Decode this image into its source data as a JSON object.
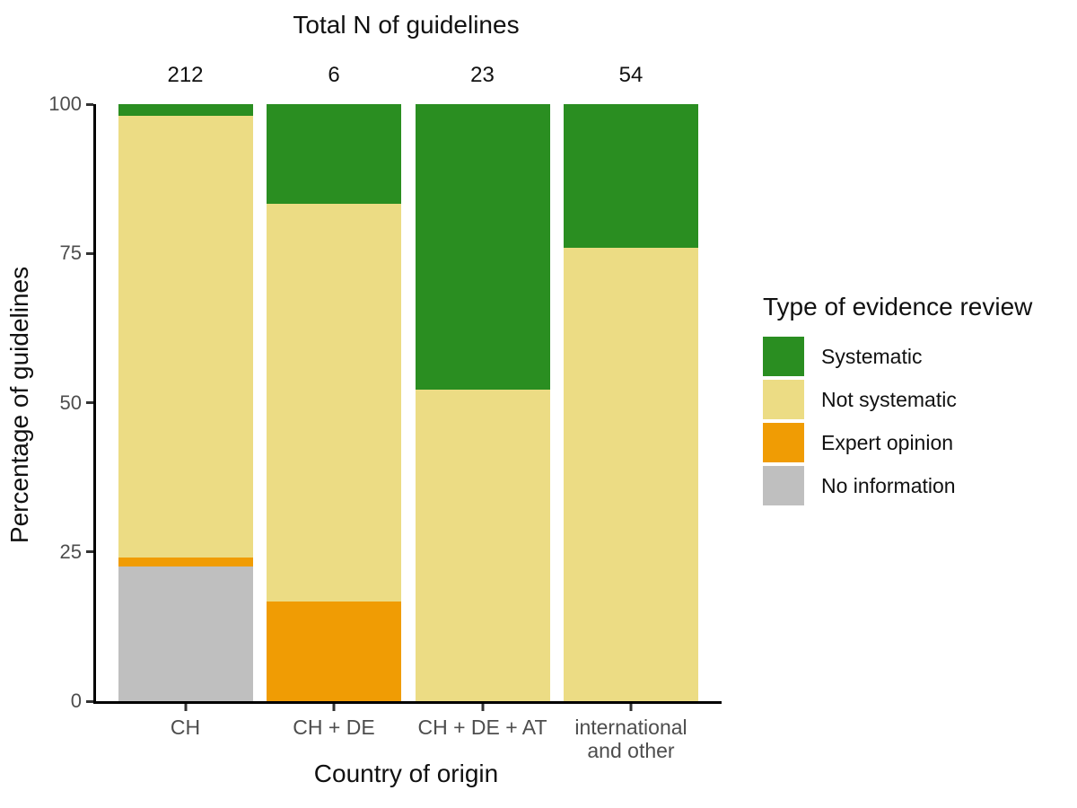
{
  "figure": {
    "top_title": "Total N of guidelines",
    "x_axis_title": "Country of origin",
    "y_axis_title": "Percentage of guidelines",
    "legend_title": "Type of evidence review"
  },
  "colors": {
    "systematic": "#2a8e21",
    "not_systematic": "#ecdc84",
    "expert_opinion": "#f09c04",
    "no_information": "#bfbfbf",
    "axis_line": "#000000",
    "tick_mark": "#333333",
    "tick_label": "#4d4d4d"
  },
  "chart_data": {
    "type": "bar",
    "stacked": true,
    "percent": true,
    "title": "Total N of guidelines",
    "xlabel": "Country of origin",
    "ylabel": "Percentage of guidelines",
    "ylim": [
      0,
      100
    ],
    "y_ticks": [
      0,
      25,
      50,
      75,
      100
    ],
    "grid": false,
    "legend_position": "right",
    "legend_title": "Type of evidence review",
    "categories": [
      "CH",
      "CH + DE",
      "CH + DE + AT",
      "international\nand other"
    ],
    "totals": [
      "212",
      "6",
      "23",
      "54"
    ],
    "series": [
      {
        "name": "Systematic",
        "color_key": "systematic",
        "values": [
          1.9,
          16.7,
          47.8,
          24.1
        ]
      },
      {
        "name": "Not systematic",
        "color_key": "not_systematic",
        "values": [
          74.1,
          66.6,
          52.2,
          75.9
        ]
      },
      {
        "name": "Expert opinion",
        "color_key": "expert_opinion",
        "values": [
          1.4,
          16.7,
          0,
          0
        ]
      },
      {
        "name": "No information",
        "color_key": "no_information",
        "values": [
          22.6,
          0,
          0,
          0
        ]
      }
    ]
  }
}
